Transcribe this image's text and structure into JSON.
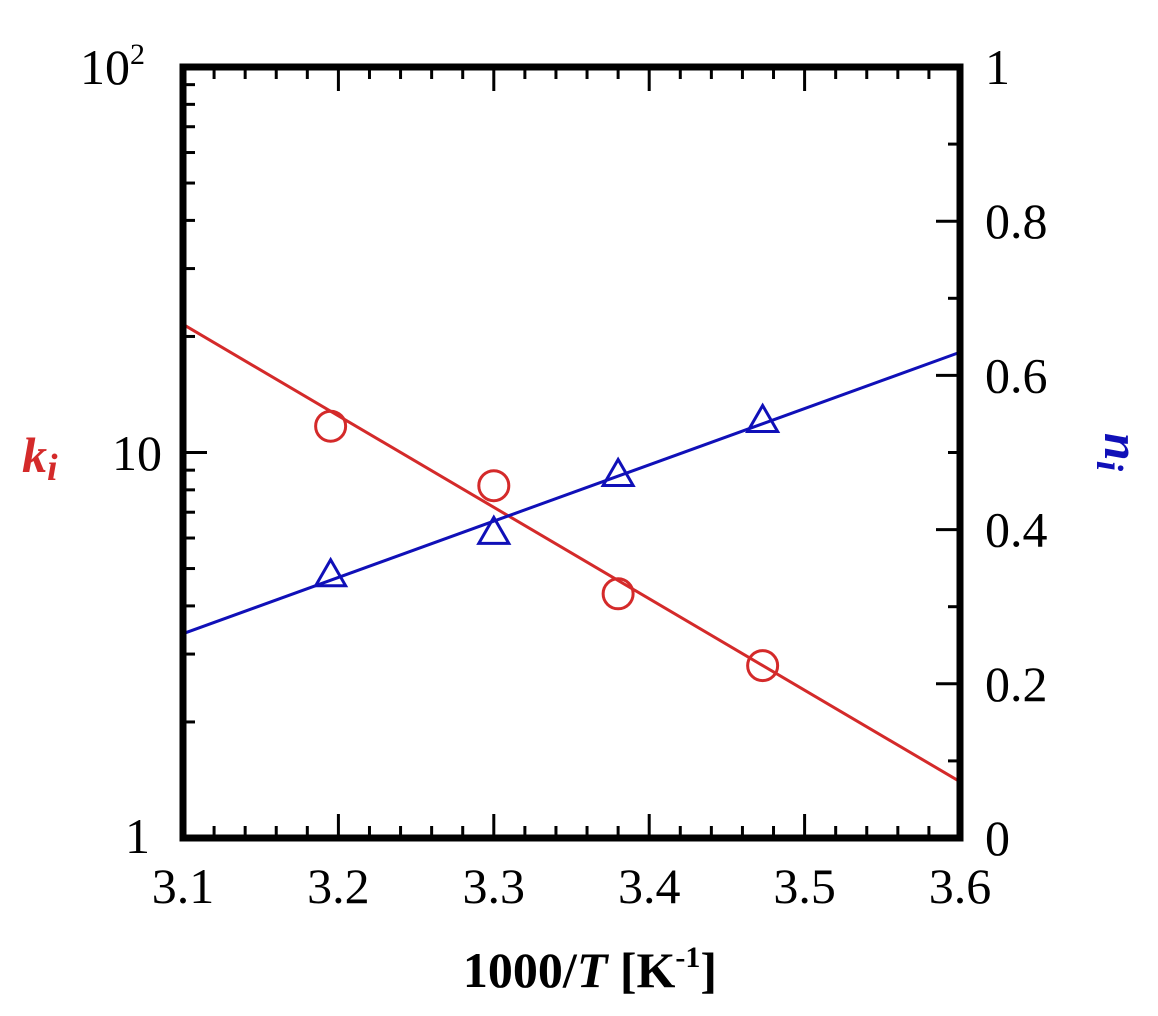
{
  "chart_data": {
    "type": "scatter",
    "x_axis": {
      "label_prefix": "1000/",
      "label_var": "T",
      "label_unit_open": " [K",
      "label_unit_exp": "-1",
      "label_unit_close": "]",
      "range": [
        3.1,
        3.6
      ],
      "ticks": [
        3.1,
        3.2,
        3.3,
        3.4,
        3.5,
        3.6
      ],
      "tick_labels": [
        "3.1",
        "3.2",
        "3.3",
        "3.4",
        "3.5",
        "3.6"
      ]
    },
    "y_left": {
      "label_var": "k",
      "label_sub": "i",
      "scale": "log",
      "range": [
        1,
        100
      ],
      "tick_labels": {
        "bottom": "1",
        "middle": "10",
        "top_base": "10",
        "top_exp": "2"
      }
    },
    "y_right": {
      "label_var": "n",
      "label_sub": "i",
      "scale": "linear",
      "range": [
        0,
        1
      ],
      "ticks": [
        0,
        0.2,
        0.4,
        0.6,
        0.8,
        1
      ],
      "tick_labels": [
        "0",
        "0.2",
        "0.4",
        "0.6",
        "0.8",
        "1"
      ]
    },
    "series": [
      {
        "axis": "left",
        "marker": "circle",
        "color": "#d42a2a",
        "points": [
          {
            "x": 3.195,
            "y": 11.7
          },
          {
            "x": 3.3,
            "y": 8.2
          },
          {
            "x": 3.38,
            "y": 4.3
          },
          {
            "x": 3.473,
            "y": 2.8
          }
        ],
        "fit_line": [
          {
            "x": 3.1,
            "y": 21.5
          },
          {
            "x": 3.6,
            "y": 1.4
          }
        ]
      },
      {
        "axis": "right",
        "marker": "triangle",
        "color": "#1010b8",
        "points": [
          {
            "x": 3.195,
            "y": 0.34
          },
          {
            "x": 3.3,
            "y": 0.395
          },
          {
            "x": 3.38,
            "y": 0.47
          },
          {
            "x": 3.473,
            "y": 0.54
          }
        ],
        "fit_line": [
          {
            "x": 3.1,
            "y": 0.265
          },
          {
            "x": 3.6,
            "y": 0.63
          }
        ]
      }
    ]
  }
}
